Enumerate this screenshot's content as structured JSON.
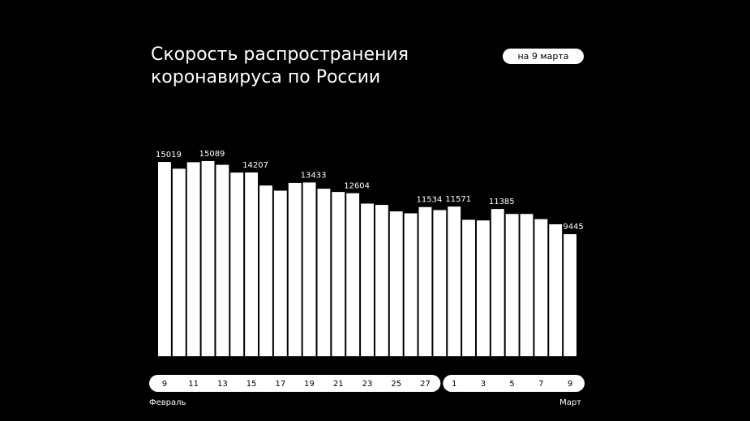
{
  "chart_data": {
    "type": "bar",
    "title": [
      "Скорость распространения",
      "коронавируса по России"
    ],
    "subtitle": "на 9 марта",
    "categories": [
      "9",
      null,
      "11",
      null,
      "13",
      null,
      "15",
      null,
      "17",
      null,
      "19",
      null,
      "21",
      null,
      "23",
      null,
      "25",
      null,
      "27",
      null,
      "1",
      null,
      "3",
      null,
      "5",
      null,
      "7",
      null,
      "9"
    ],
    "values": [
      15019,
      14500,
      15000,
      15089,
      14800,
      14200,
      14207,
      13200,
      12800,
      13400,
      13433,
      12950,
      12700,
      12604,
      11800,
      11700,
      11200,
      11050,
      11534,
      11300,
      11571,
      10550,
      10500,
      11385,
      11000,
      11000,
      10600,
      10200,
      9445
    ],
    "value_labels": [
      "15019",
      null,
      null,
      "15089",
      null,
      null,
      "14207",
      null,
      null,
      null,
      "13433",
      null,
      null,
      "12604",
      null,
      null,
      null,
      null,
      "11534",
      null,
      "11571",
      null,
      null,
      "11385",
      null,
      null,
      null,
      null,
      "9445"
    ],
    "months": [
      {
        "name": "Февраль",
        "count": 20
      },
      {
        "name": "Март",
        "count": 9
      }
    ],
    "color": "#ffffff",
    "ylim": [
      0,
      16000
    ]
  }
}
